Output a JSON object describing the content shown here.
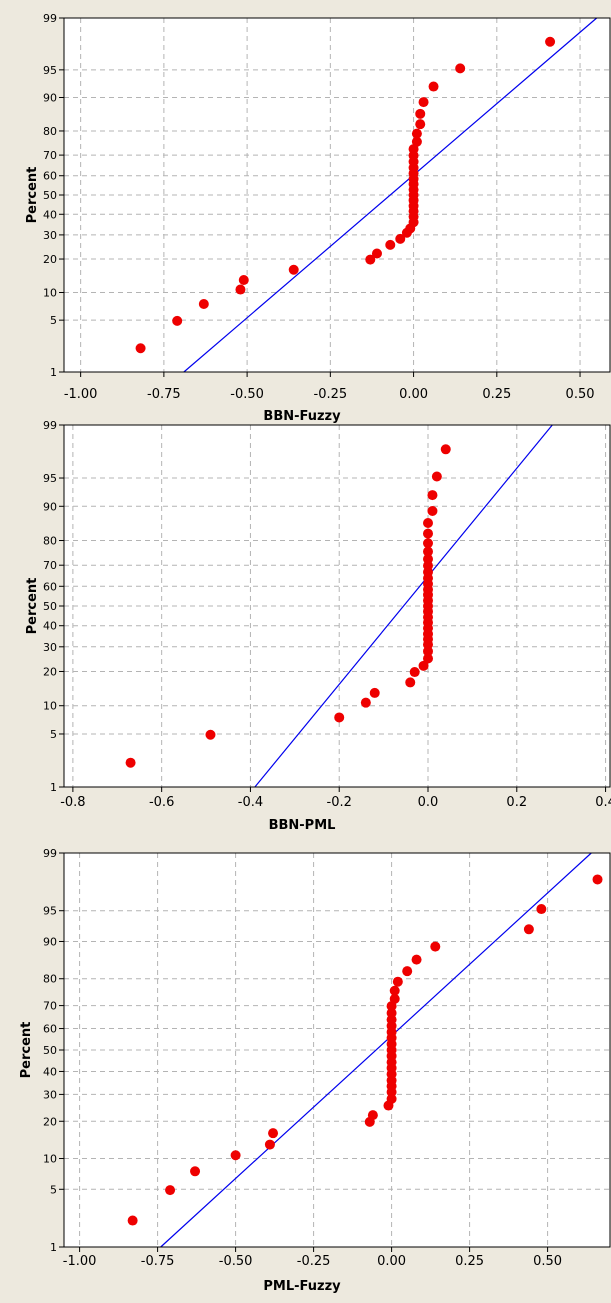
{
  "chart_data": [
    {
      "type": "scatter",
      "xlabel": "BBN-Fuzzy",
      "ylabel": "Percent",
      "x_ticks": [
        "-1.00",
        "-0.75",
        "-0.50",
        "-0.25",
        "0.00",
        "0.25",
        "0.50"
      ],
      "x_tick_values": [
        -1.0,
        -0.75,
        -0.5,
        -0.25,
        0.0,
        0.25,
        0.5
      ],
      "y_ticks": [
        "1",
        "5",
        "10",
        "20",
        "30",
        "40",
        "50",
        "60",
        "70",
        "80",
        "90",
        "95",
        "99"
      ],
      "xlim": [
        -1.05,
        0.59
      ],
      "ylim": [
        1,
        99
      ],
      "y_scale": "normal-probability",
      "grid": true,
      "fit_line": [
        [
          -0.69,
          1
        ],
        [
          0.55,
          99
        ]
      ],
      "points": [
        [
          -0.82,
          2.2
        ],
        [
          -0.71,
          4.9
        ],
        [
          -0.63,
          7.6
        ],
        [
          -0.52,
          10.7
        ],
        [
          -0.51,
          13.2
        ],
        [
          -0.36,
          16.3
        ],
        [
          -0.13,
          19.8
        ],
        [
          -0.11,
          22.1
        ],
        [
          -0.07,
          25.6
        ],
        [
          -0.04,
          28.2
        ],
        [
          -0.02,
          31.0
        ],
        [
          -0.01,
          33.0
        ],
        [
          0.0,
          36.0
        ],
        [
          0.0,
          38.8
        ],
        [
          0.0,
          41.6
        ],
        [
          0.0,
          44.3
        ],
        [
          0.0,
          47.2
        ],
        [
          0.0,
          50.0
        ],
        [
          0.0,
          52.8
        ],
        [
          0.0,
          55.7
        ],
        [
          0.0,
          58.4
        ],
        [
          0.0,
          61.2
        ],
        [
          0.0,
          64.0
        ],
        [
          0.0,
          66.9
        ],
        [
          0.0,
          69.8
        ],
        [
          0.0,
          72.7
        ],
        [
          0.01,
          75.8
        ],
        [
          0.01,
          79.0
        ],
        [
          0.02,
          82.4
        ],
        [
          0.02,
          85.7
        ],
        [
          0.03,
          88.9
        ],
        [
          0.06,
          92.3
        ],
        [
          0.14,
          95.2
        ],
        [
          0.41,
          97.8
        ]
      ]
    },
    {
      "type": "scatter",
      "xlabel": "BBN-PML",
      "ylabel": "Percent",
      "x_ticks": [
        "-0.8",
        "-0.6",
        "-0.4",
        "-0.2",
        "0.0",
        "0.2",
        "0.4"
      ],
      "x_tick_values": [
        -0.8,
        -0.6,
        -0.4,
        -0.2,
        0.0,
        0.2,
        0.4
      ],
      "y_ticks": [
        "1",
        "5",
        "10",
        "20",
        "30",
        "40",
        "50",
        "60",
        "70",
        "80",
        "90",
        "95",
        "99"
      ],
      "xlim": [
        -0.82,
        0.41
      ],
      "ylim": [
        1,
        99
      ],
      "y_scale": "normal-probability",
      "grid": true,
      "fit_line": [
        [
          -0.39,
          1
        ],
        [
          0.28,
          99
        ]
      ],
      "points": [
        [
          -0.67,
          2.2
        ],
        [
          -0.49,
          4.9
        ],
        [
          -0.2,
          7.6
        ],
        [
          -0.14,
          10.7
        ],
        [
          -0.12,
          13.2
        ],
        [
          -0.04,
          16.3
        ],
        [
          -0.03,
          19.8
        ],
        [
          -0.01,
          22.1
        ],
        [
          0.0,
          25.0
        ],
        [
          0.0,
          28.0
        ],
        [
          0.0,
          31.0
        ],
        [
          0.0,
          33.5
        ],
        [
          0.0,
          36.0
        ],
        [
          0.0,
          38.8
        ],
        [
          0.0,
          41.6
        ],
        [
          0.0,
          44.3
        ],
        [
          0.0,
          47.2
        ],
        [
          0.0,
          50.0
        ],
        [
          0.0,
          52.8
        ],
        [
          0.0,
          55.7
        ],
        [
          0.0,
          58.4
        ],
        [
          0.0,
          61.2
        ],
        [
          0.0,
          64.0
        ],
        [
          0.0,
          66.9
        ],
        [
          0.0,
          69.8
        ],
        [
          0.0,
          72.7
        ],
        [
          0.0,
          75.8
        ],
        [
          0.0,
          79.0
        ],
        [
          0.0,
          82.4
        ],
        [
          0.0,
          85.7
        ],
        [
          0.01,
          88.9
        ],
        [
          0.01,
          92.3
        ],
        [
          0.02,
          95.2
        ],
        [
          0.04,
          97.8
        ]
      ]
    },
    {
      "type": "scatter",
      "xlabel": "PML-Fuzzy",
      "ylabel": "Percent",
      "x_ticks": [
        "-1.00",
        "-0.75",
        "-0.50",
        "-0.25",
        "0.00",
        "0.25",
        "0.50"
      ],
      "x_tick_values": [
        -1.0,
        -0.75,
        -0.5,
        -0.25,
        0.0,
        0.25,
        0.5
      ],
      "y_ticks": [
        "1",
        "5",
        "10",
        "20",
        "30",
        "40",
        "50",
        "60",
        "70",
        "80",
        "90",
        "95",
        "99"
      ],
      "xlim": [
        -1.05,
        0.7
      ],
      "ylim": [
        1,
        99
      ],
      "y_scale": "normal-probability",
      "grid": true,
      "fit_line": [
        [
          -0.74,
          1
        ],
        [
          0.64,
          99
        ]
      ],
      "points": [
        [
          -0.83,
          2.2
        ],
        [
          -0.71,
          4.9
        ],
        [
          -0.63,
          7.6
        ],
        [
          -0.5,
          10.7
        ],
        [
          -0.39,
          13.2
        ],
        [
          -0.38,
          16.3
        ],
        [
          -0.07,
          19.8
        ],
        [
          -0.06,
          22.1
        ],
        [
          -0.01,
          25.6
        ],
        [
          0.0,
          28.2
        ],
        [
          0.0,
          31.0
        ],
        [
          0.0,
          33.5
        ],
        [
          0.0,
          36.0
        ],
        [
          0.0,
          38.8
        ],
        [
          0.0,
          41.6
        ],
        [
          0.0,
          44.3
        ],
        [
          0.0,
          47.2
        ],
        [
          0.0,
          50.0
        ],
        [
          0.0,
          52.8
        ],
        [
          0.0,
          55.7
        ],
        [
          0.0,
          58.4
        ],
        [
          0.0,
          61.2
        ],
        [
          0.0,
          64.0
        ],
        [
          0.0,
          66.9
        ],
        [
          0.0,
          69.8
        ],
        [
          0.01,
          72.7
        ],
        [
          0.01,
          75.8
        ],
        [
          0.02,
          79.0
        ],
        [
          0.05,
          82.4
        ],
        [
          0.08,
          85.7
        ],
        [
          0.14,
          88.9
        ],
        [
          0.44,
          92.3
        ],
        [
          0.48,
          95.2
        ],
        [
          0.66,
          97.8
        ]
      ]
    }
  ]
}
